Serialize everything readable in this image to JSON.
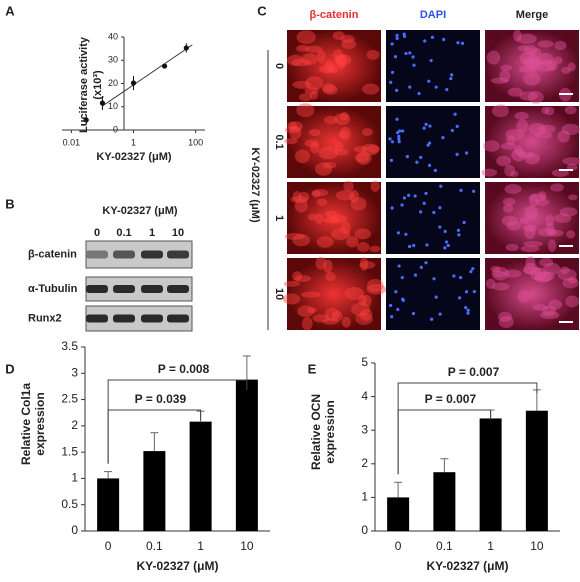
{
  "panels": {
    "letters": [
      "A",
      "B",
      "C",
      "D",
      "E"
    ]
  },
  "blot": {
    "treatment": "KY-02327 (μM)",
    "lanes": [
      "0",
      "0.1",
      "1",
      "10"
    ],
    "rows": [
      "β-catenin",
      "α-Tubulin",
      "Runx2"
    ]
  },
  "microscopy": {
    "columns": [
      "β-catenin",
      "DAPI",
      "Merge"
    ],
    "rows": [
      "0",
      "0.1",
      "1",
      "10"
    ],
    "treatment": "KY-02327 (μM)"
  },
  "chart_data": [
    {
      "type": "scatter",
      "xlabel": "KY-02327 (μM)",
      "ylabel": [
        "Luciferase activity",
        "(x10³)"
      ],
      "x": [
        0.03,
        0.1,
        1,
        10,
        50
      ],
      "values": [
        4.3,
        11.6,
        20.2,
        27.5,
        35.3
      ],
      "errors": [
        0,
        3,
        3,
        1,
        2
      ],
      "xscale": "log",
      "xlim": [
        0.005,
        200
      ],
      "xticks": [
        0.01,
        1,
        100
      ],
      "ylim": [
        0,
        40
      ],
      "yticks": [
        0,
        10,
        20,
        30,
        40
      ],
      "color": "#111111"
    },
    {
      "type": "bar",
      "xlabel": "KY-02327 (μM)",
      "ylabel": [
        "Relative Col1a",
        "expression"
      ],
      "categories": [
        "0",
        "0.1",
        "1",
        "10"
      ],
      "values": [
        1.0,
        1.52,
        2.08,
        2.88
      ],
      "errors": [
        0.13,
        0.35,
        0.2,
        0.45
      ],
      "ylim": [
        0,
        3.5
      ],
      "yticks": [
        0,
        0.5,
        1,
        1.5,
        2,
        2.5,
        3,
        3.5
      ],
      "color": "#000000",
      "annotations": [
        "P = 0.039",
        "P = 0.008"
      ]
    },
    {
      "type": "bar",
      "xlabel": "KY-02327 (μM)",
      "ylabel": [
        "Relative OCN",
        "expression"
      ],
      "categories": [
        "0",
        "0.1",
        "1",
        "10"
      ],
      "values": [
        1.0,
        1.75,
        3.35,
        3.58
      ],
      "errors": [
        0.45,
        0.4,
        0.25,
        0.62
      ],
      "ylim": [
        0,
        5
      ],
      "yticks": [
        0,
        1,
        2,
        3,
        4,
        5
      ],
      "color": "#000000",
      "annotations": [
        "P = 0.007",
        "P = 0.007"
      ]
    }
  ]
}
